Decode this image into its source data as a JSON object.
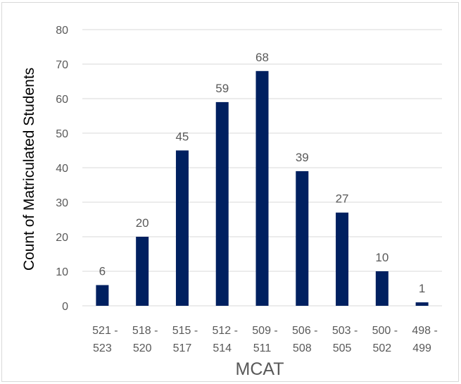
{
  "chart_data": {
    "type": "bar",
    "categories": [
      [
        "521 -",
        "523"
      ],
      [
        "518 -",
        "520"
      ],
      [
        "515 -",
        "517"
      ],
      [
        "512 -",
        "514"
      ],
      [
        "509 -",
        "511"
      ],
      [
        "506 -",
        "508"
      ],
      [
        "503 -",
        "505"
      ],
      [
        "500 -",
        "502"
      ],
      [
        "498 -",
        "499"
      ]
    ],
    "values": [
      6,
      20,
      45,
      59,
      68,
      39,
      27,
      10,
      1
    ],
    "xlabel": "MCAT",
    "ylabel": "Count of Matriculated Students",
    "ylim": [
      0,
      80
    ],
    "yticks": [
      0,
      10,
      20,
      30,
      40,
      50,
      60,
      70,
      80
    ],
    "grid": true,
    "data_labels": true,
    "bar_color": "#002060"
  }
}
